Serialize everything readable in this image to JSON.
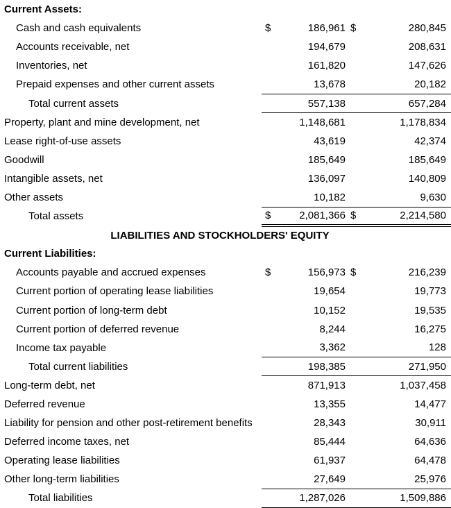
{
  "page": {
    "background": "#ffffff",
    "text_color": "#000000",
    "rule_color": "#000000",
    "document_type": "balance-sheet"
  },
  "statement": {
    "section_title": "LIABILITIES AND STOCKHOLDERS' EQUITY",
    "currency_symbol": "$",
    "rows": [
      {
        "type": "heading",
        "indent": 0,
        "bold": true,
        "rule": "none",
        "label": "Current Assets:",
        "dollar1": "",
        "value1": "",
        "dollar2": "",
        "value2": ""
      },
      {
        "type": "item",
        "indent": 1,
        "bold": false,
        "rule": "none",
        "label": "Cash and cash equivalents",
        "dollar1": "$",
        "value1": "186,961",
        "dollar2": "$",
        "value2": "280,845"
      },
      {
        "type": "item",
        "indent": 1,
        "bold": false,
        "rule": "none",
        "label": "Accounts receivable, net",
        "dollar1": "",
        "value1": "194,679",
        "dollar2": "",
        "value2": "208,631"
      },
      {
        "type": "item",
        "indent": 1,
        "bold": false,
        "rule": "none",
        "label": "Inventories, net",
        "dollar1": "",
        "value1": "161,820",
        "dollar2": "",
        "value2": "147,626"
      },
      {
        "type": "item",
        "indent": 1,
        "bold": false,
        "rule": "single",
        "label": "Prepaid expenses and other current assets",
        "dollar1": "",
        "value1": "13,678",
        "dollar2": "",
        "value2": "20,182"
      },
      {
        "type": "total",
        "indent": 2,
        "bold": false,
        "rule": "single",
        "label": "Total current assets",
        "dollar1": "",
        "value1": "557,138",
        "dollar2": "",
        "value2": "657,284"
      },
      {
        "type": "item",
        "indent": 0,
        "bold": false,
        "rule": "none",
        "label": "Property, plant and mine development, net",
        "dollar1": "",
        "value1": "1,148,681",
        "dollar2": "",
        "value2": "1,178,834"
      },
      {
        "type": "item",
        "indent": 0,
        "bold": false,
        "rule": "none",
        "label": "Lease right-of-use assets",
        "dollar1": "",
        "value1": "43,619",
        "dollar2": "",
        "value2": "42,374"
      },
      {
        "type": "item",
        "indent": 0,
        "bold": false,
        "rule": "none",
        "label": "Goodwill",
        "dollar1": "",
        "value1": "185,649",
        "dollar2": "",
        "value2": "185,649"
      },
      {
        "type": "item",
        "indent": 0,
        "bold": false,
        "rule": "none",
        "label": "Intangible assets, net",
        "dollar1": "",
        "value1": "136,097",
        "dollar2": "",
        "value2": "140,809"
      },
      {
        "type": "item",
        "indent": 0,
        "bold": false,
        "rule": "single",
        "label": "Other assets",
        "dollar1": "",
        "value1": "10,182",
        "dollar2": "",
        "value2": "9,630"
      },
      {
        "type": "total",
        "indent": 2,
        "bold": false,
        "rule": "double",
        "label": "Total assets",
        "dollar1": "$",
        "value1": "2,081,366",
        "dollar2": "$",
        "value2": "2,214,580"
      },
      {
        "type": "section-title",
        "indent": 0,
        "bold": true,
        "rule": "none",
        "label": "LIABILITIES AND STOCKHOLDERS' EQUITY",
        "dollar1": "",
        "value1": "",
        "dollar2": "",
        "value2": ""
      },
      {
        "type": "heading",
        "indent": 0,
        "bold": true,
        "rule": "none",
        "label": "Current Liabilities:",
        "dollar1": "",
        "value1": "",
        "dollar2": "",
        "value2": ""
      },
      {
        "type": "item",
        "indent": 1,
        "bold": false,
        "rule": "none",
        "label": "Accounts payable and accrued expenses",
        "dollar1": "$",
        "value1": "156,973",
        "dollar2": "$",
        "value2": "216,239"
      },
      {
        "type": "item",
        "indent": 1,
        "bold": false,
        "rule": "none",
        "label": "Current portion of operating lease liabilities",
        "dollar1": "",
        "value1": "19,654",
        "dollar2": "",
        "value2": "19,773"
      },
      {
        "type": "item",
        "indent": 1,
        "bold": false,
        "rule": "none",
        "label": "Current portion of long-term debt",
        "dollar1": "",
        "value1": "10,152",
        "dollar2": "",
        "value2": "19,535"
      },
      {
        "type": "item",
        "indent": 1,
        "bold": false,
        "rule": "none",
        "label": "Current portion of deferred revenue",
        "dollar1": "",
        "value1": "8,244",
        "dollar2": "",
        "value2": "16,275"
      },
      {
        "type": "item",
        "indent": 1,
        "bold": false,
        "rule": "single",
        "label": "Income tax payable",
        "dollar1": "",
        "value1": "3,362",
        "dollar2": "",
        "value2": "128"
      },
      {
        "type": "total",
        "indent": 2,
        "bold": false,
        "rule": "single",
        "label": "Total current liabilities",
        "dollar1": "",
        "value1": "198,385",
        "dollar2": "",
        "value2": "271,950"
      },
      {
        "type": "item",
        "indent": 0,
        "bold": false,
        "rule": "none",
        "label": "Long-term debt, net",
        "dollar1": "",
        "value1": "871,913",
        "dollar2": "",
        "value2": "1,037,458"
      },
      {
        "type": "item",
        "indent": 0,
        "bold": false,
        "rule": "none",
        "label": "Deferred revenue",
        "dollar1": "",
        "value1": "13,355",
        "dollar2": "",
        "value2": "14,477"
      },
      {
        "type": "item",
        "indent": 0,
        "bold": false,
        "rule": "none",
        "label": "Liability for pension and other post-retirement benefits",
        "dollar1": "",
        "value1": "28,343",
        "dollar2": "",
        "value2": "30,911"
      },
      {
        "type": "item",
        "indent": 0,
        "bold": false,
        "rule": "none",
        "label": "Deferred income taxes, net",
        "dollar1": "",
        "value1": "85,444",
        "dollar2": "",
        "value2": "64,636"
      },
      {
        "type": "item",
        "indent": 0,
        "bold": false,
        "rule": "none",
        "label": "Operating lease liabilities",
        "dollar1": "",
        "value1": "61,937",
        "dollar2": "",
        "value2": "64,478"
      },
      {
        "type": "item",
        "indent": 0,
        "bold": false,
        "rule": "single",
        "label": "Other long-term liabilities",
        "dollar1": "",
        "value1": "27,649",
        "dollar2": "",
        "value2": "25,976"
      },
      {
        "type": "total",
        "indent": 2,
        "bold": false,
        "rule": "single",
        "label": "Total liabilities",
        "dollar1": "",
        "value1": "1,287,026",
        "dollar2": "",
        "value2": "1,509,886"
      }
    ]
  }
}
